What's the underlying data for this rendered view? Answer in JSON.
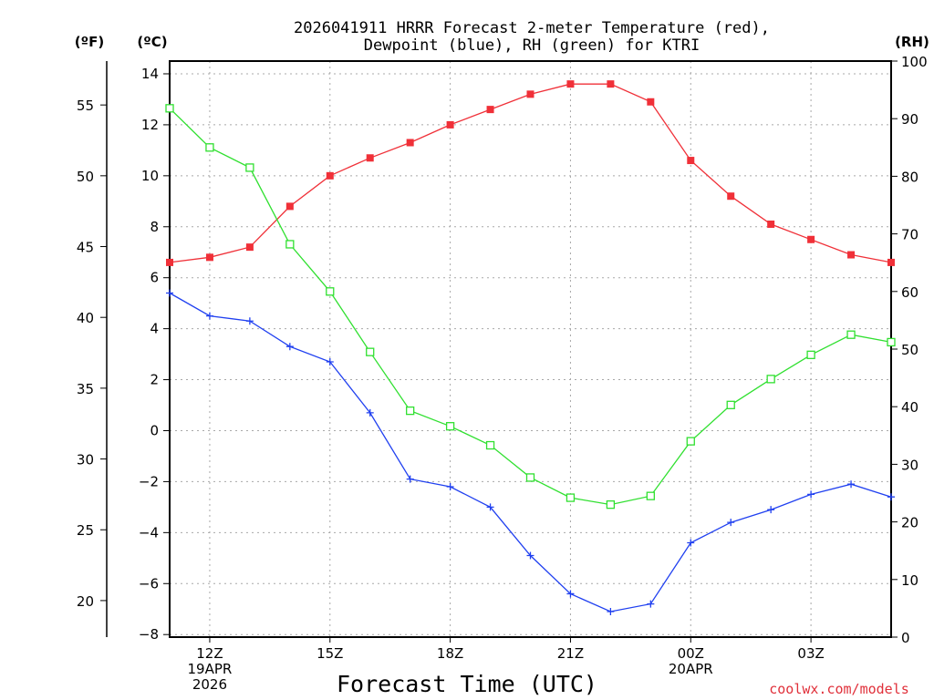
{
  "chart_data": {
    "type": "line",
    "title_line1": "2026041911 HRRR Forecast 2-meter Temperature (red),",
    "title_line2": "Dewpoint (blue), RH (green) for KTRI",
    "xlabel": "Forecast Time (UTC)",
    "credit": "coolwx.com/models",
    "units": {
      "f": "(ºF)",
      "c": "(ºC)",
      "rh": "(RH)"
    },
    "hours": [
      11,
      12,
      13,
      14,
      15,
      16,
      17,
      18,
      19,
      20,
      21,
      22,
      23,
      24,
      25,
      26,
      27,
      28,
      29
    ],
    "x_range": [
      11,
      29
    ],
    "c_range": [
      -8.1,
      14.5
    ],
    "rh_range": [
      0,
      100
    ],
    "f_ticks": [
      20,
      25,
      30,
      35,
      40,
      45,
      50,
      55
    ],
    "c_ticks": [
      -8,
      -6,
      -4,
      -2,
      0,
      2,
      4,
      6,
      8,
      10,
      12,
      14
    ],
    "rh_ticks": [
      0,
      10,
      20,
      30,
      40,
      50,
      60,
      70,
      80,
      90,
      100
    ],
    "x_ticks": [
      {
        "hour": 12,
        "lines": [
          "12Z",
          "19APR",
          "2026"
        ]
      },
      {
        "hour": 15,
        "lines": [
          "15Z"
        ]
      },
      {
        "hour": 18,
        "lines": [
          "18Z"
        ]
      },
      {
        "hour": 21,
        "lines": [
          "21Z"
        ]
      },
      {
        "hour": 24,
        "lines": [
          "00Z",
          "20APR"
        ]
      },
      {
        "hour": 27,
        "lines": [
          "03Z"
        ]
      }
    ],
    "series": [
      {
        "name": "Temperature",
        "axis": "c",
        "color": "#f03038",
        "marker": "filled-square",
        "values": [
          6.6,
          6.8,
          7.2,
          8.8,
          10.0,
          10.7,
          11.3,
          12.0,
          12.6,
          13.2,
          13.6,
          13.6,
          12.9,
          10.6,
          9.2,
          8.1,
          7.5,
          6.9,
          6.6
        ]
      },
      {
        "name": "Dewpoint",
        "axis": "c",
        "color": "#2040f0",
        "marker": "plus",
        "values": [
          5.4,
          4.5,
          4.3,
          3.3,
          2.7,
          0.7,
          -1.9,
          -2.2,
          -3.0,
          -4.9,
          -6.4,
          -7.1,
          -6.8,
          -4.4,
          -3.6,
          -3.1,
          -2.5,
          -2.1,
          -2.6
        ]
      },
      {
        "name": "RH",
        "axis": "rh",
        "color": "#30e030",
        "marker": "open-square",
        "values": [
          91.8,
          85.0,
          81.5,
          68.2,
          60.0,
          49.5,
          39.3,
          36.6,
          33.3,
          27.7,
          24.2,
          23.0,
          24.5,
          34.0,
          40.3,
          44.8,
          49.0,
          52.5,
          51.2
        ]
      }
    ]
  }
}
